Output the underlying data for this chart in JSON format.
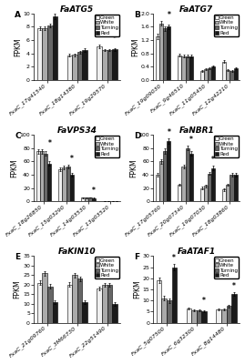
{
  "panels": [
    {
      "label": "A",
      "title": "FaATG5",
      "ylabel": "FPKM",
      "ylim": [
        0,
        10
      ],
      "yticks": [
        0,
        2,
        4,
        6,
        8,
        10
      ],
      "groups": [
        "FxaC_17g41540",
        "FxaC_18g14380",
        "FxaC_19g29570"
      ],
      "values": {
        "Green": [
          7.8,
          3.7,
          5.0
        ],
        "White": [
          7.8,
          3.8,
          4.5
        ],
        "Turning": [
          8.2,
          4.2,
          4.5
        ],
        "Red": [
          9.5,
          4.5,
          4.6
        ]
      },
      "errors": {
        "Green": [
          0.3,
          0.2,
          0.25
        ],
        "White": [
          0.3,
          0.2,
          0.2
        ],
        "Turning": [
          0.3,
          0.2,
          0.2
        ],
        "Red": [
          0.4,
          0.3,
          0.2
        ]
      },
      "stars": [
        null,
        null,
        "top"
      ]
    },
    {
      "label": "B",
      "title": "FaATG7",
      "ylabel": "FPKM",
      "ylim": [
        0,
        2
      ],
      "yticks": [
        0,
        0.4,
        0.8,
        1.2,
        1.6,
        2.0
      ],
      "groups": [
        "FxaC_19g09030",
        "FxaC_9g46510",
        "FxaC_11g05450",
        "FxaC_12g42210"
      ],
      "values": {
        "Green": [
          1.3,
          0.75,
          0.28,
          0.55
        ],
        "White": [
          1.7,
          0.72,
          0.32,
          0.3
        ],
        "Turning": [
          1.55,
          0.72,
          0.35,
          0.28
        ],
        "Red": [
          1.6,
          0.72,
          0.4,
          0.35
        ]
      },
      "errors": {
        "Green": [
          0.08,
          0.04,
          0.03,
          0.04
        ],
        "White": [
          0.07,
          0.04,
          0.03,
          0.03
        ],
        "Turning": [
          0.07,
          0.04,
          0.03,
          0.03
        ],
        "Red": [
          0.07,
          0.04,
          0.03,
          0.03
        ]
      },
      "stars": [
        "top",
        null,
        null,
        null
      ]
    },
    {
      "label": "C",
      "title": "FaVPS34",
      "ylabel": "FPKM",
      "ylim": [
        0,
        100
      ],
      "yticks": [
        0,
        20,
        40,
        60,
        80,
        100
      ],
      "groups": [
        "FxaC_18g26850",
        "FxaC_15g03290",
        "FxaC_14g03530",
        "FxaC_13g03520"
      ],
      "values": {
        "Green": [
          75,
          48,
          5.5,
          0.5
        ],
        "White": [
          75,
          51,
          5.5,
          0.5
        ],
        "Turning": [
          72,
          52,
          6.0,
          0.5
        ],
        "Red": [
          57,
          40,
          5.0,
          0.5
        ]
      },
      "errors": {
        "Green": [
          3,
          2.5,
          0.5,
          0.1
        ],
        "White": [
          3,
          2.5,
          0.5,
          0.1
        ],
        "Turning": [
          3,
          2.5,
          0.5,
          0.1
        ],
        "Red": [
          3,
          2.5,
          0.5,
          0.1
        ]
      },
      "stars": [
        "top",
        "top",
        "top",
        null
      ]
    },
    {
      "label": "D",
      "title": "FaNBR1",
      "ylabel": "FPKM",
      "ylim": [
        0,
        100
      ],
      "yticks": [
        0,
        20,
        40,
        60,
        80,
        100
      ],
      "groups": [
        "FxaC_17g05760",
        "FxaC_20g07340",
        "FxaC_19g07030",
        "FxaC_18g03860"
      ],
      "values": {
        "Green": [
          40,
          25,
          20,
          18
        ],
        "White": [
          60,
          52,
          23,
          25
        ],
        "Turning": [
          75,
          80,
          42,
          40
        ],
        "Red": [
          90,
          72,
          50,
          40
        ]
      },
      "errors": {
        "Green": [
          3,
          2,
          2,
          2
        ],
        "White": [
          3,
          2.5,
          2,
          2
        ],
        "Turning": [
          4,
          3,
          2.5,
          2.5
        ],
        "Red": [
          4,
          3.5,
          3,
          2.5
        ]
      },
      "stars": [
        "top",
        "top",
        "top",
        null
      ]
    },
    {
      "label": "E",
      "title": "FaKIN10",
      "ylabel": "FPKM",
      "ylim": [
        0,
        35
      ],
      "yticks": [
        0,
        5,
        10,
        15,
        20,
        25,
        30,
        35
      ],
      "groups": [
        "FxaC_21g09760",
        "FxaC_3M66730",
        "FxaC_22g51490"
      ],
      "values": {
        "Green": [
          21,
          20,
          18
        ],
        "White": [
          26,
          25,
          20
        ],
        "Turning": [
          19,
          23,
          20
        ],
        "Red": [
          11,
          11,
          10
        ]
      },
      "errors": {
        "Green": [
          1.2,
          1.2,
          1.0
        ],
        "White": [
          1.2,
          1.2,
          1.0
        ],
        "Turning": [
          1.2,
          1.2,
          1.0
        ],
        "Red": [
          1.0,
          1.0,
          1.0
        ]
      },
      "stars": [
        null,
        null,
        "top"
      ]
    },
    {
      "label": "F",
      "title": "FaATAF1",
      "ylabel": "FPKM",
      "ylim": [
        0,
        30
      ],
      "yticks": [
        0,
        5,
        10,
        15,
        20,
        25,
        30
      ],
      "groups": [
        "FxaC_5g07500",
        "FxaC_6g32300",
        "FxaC_8g14480"
      ],
      "values": {
        "Green": [
          19,
          6.5,
          6.0
        ],
        "White": [
          11,
          5.5,
          6.0
        ],
        "Turning": [
          10,
          5.5,
          7.5
        ],
        "Red": [
          25,
          5.0,
          13.0
        ]
      },
      "errors": {
        "Green": [
          1.2,
          0.5,
          0.5
        ],
        "White": [
          1.0,
          0.4,
          0.5
        ],
        "Turning": [
          1.0,
          0.4,
          0.5
        ],
        "Red": [
          1.5,
          0.4,
          0.8
        ]
      },
      "stars": [
        "top",
        "top",
        "top"
      ]
    }
  ],
  "bar_colors": {
    "Green": "#f0f0f0",
    "White": "#aaaaaa",
    "Turning": "#666666",
    "Red": "#1a1a1a"
  },
  "bar_edge_color": "#000000",
  "bar_width": 0.17,
  "legend_labels": [
    "Green",
    "White",
    "Turning",
    "Red"
  ],
  "background_color": "#ffffff",
  "title_fontsize": 6.5,
  "axis_fontsize": 5.5,
  "tick_fontsize": 4.5,
  "label_fontsize": 6.5,
  "legend_fontsize": 4.0
}
